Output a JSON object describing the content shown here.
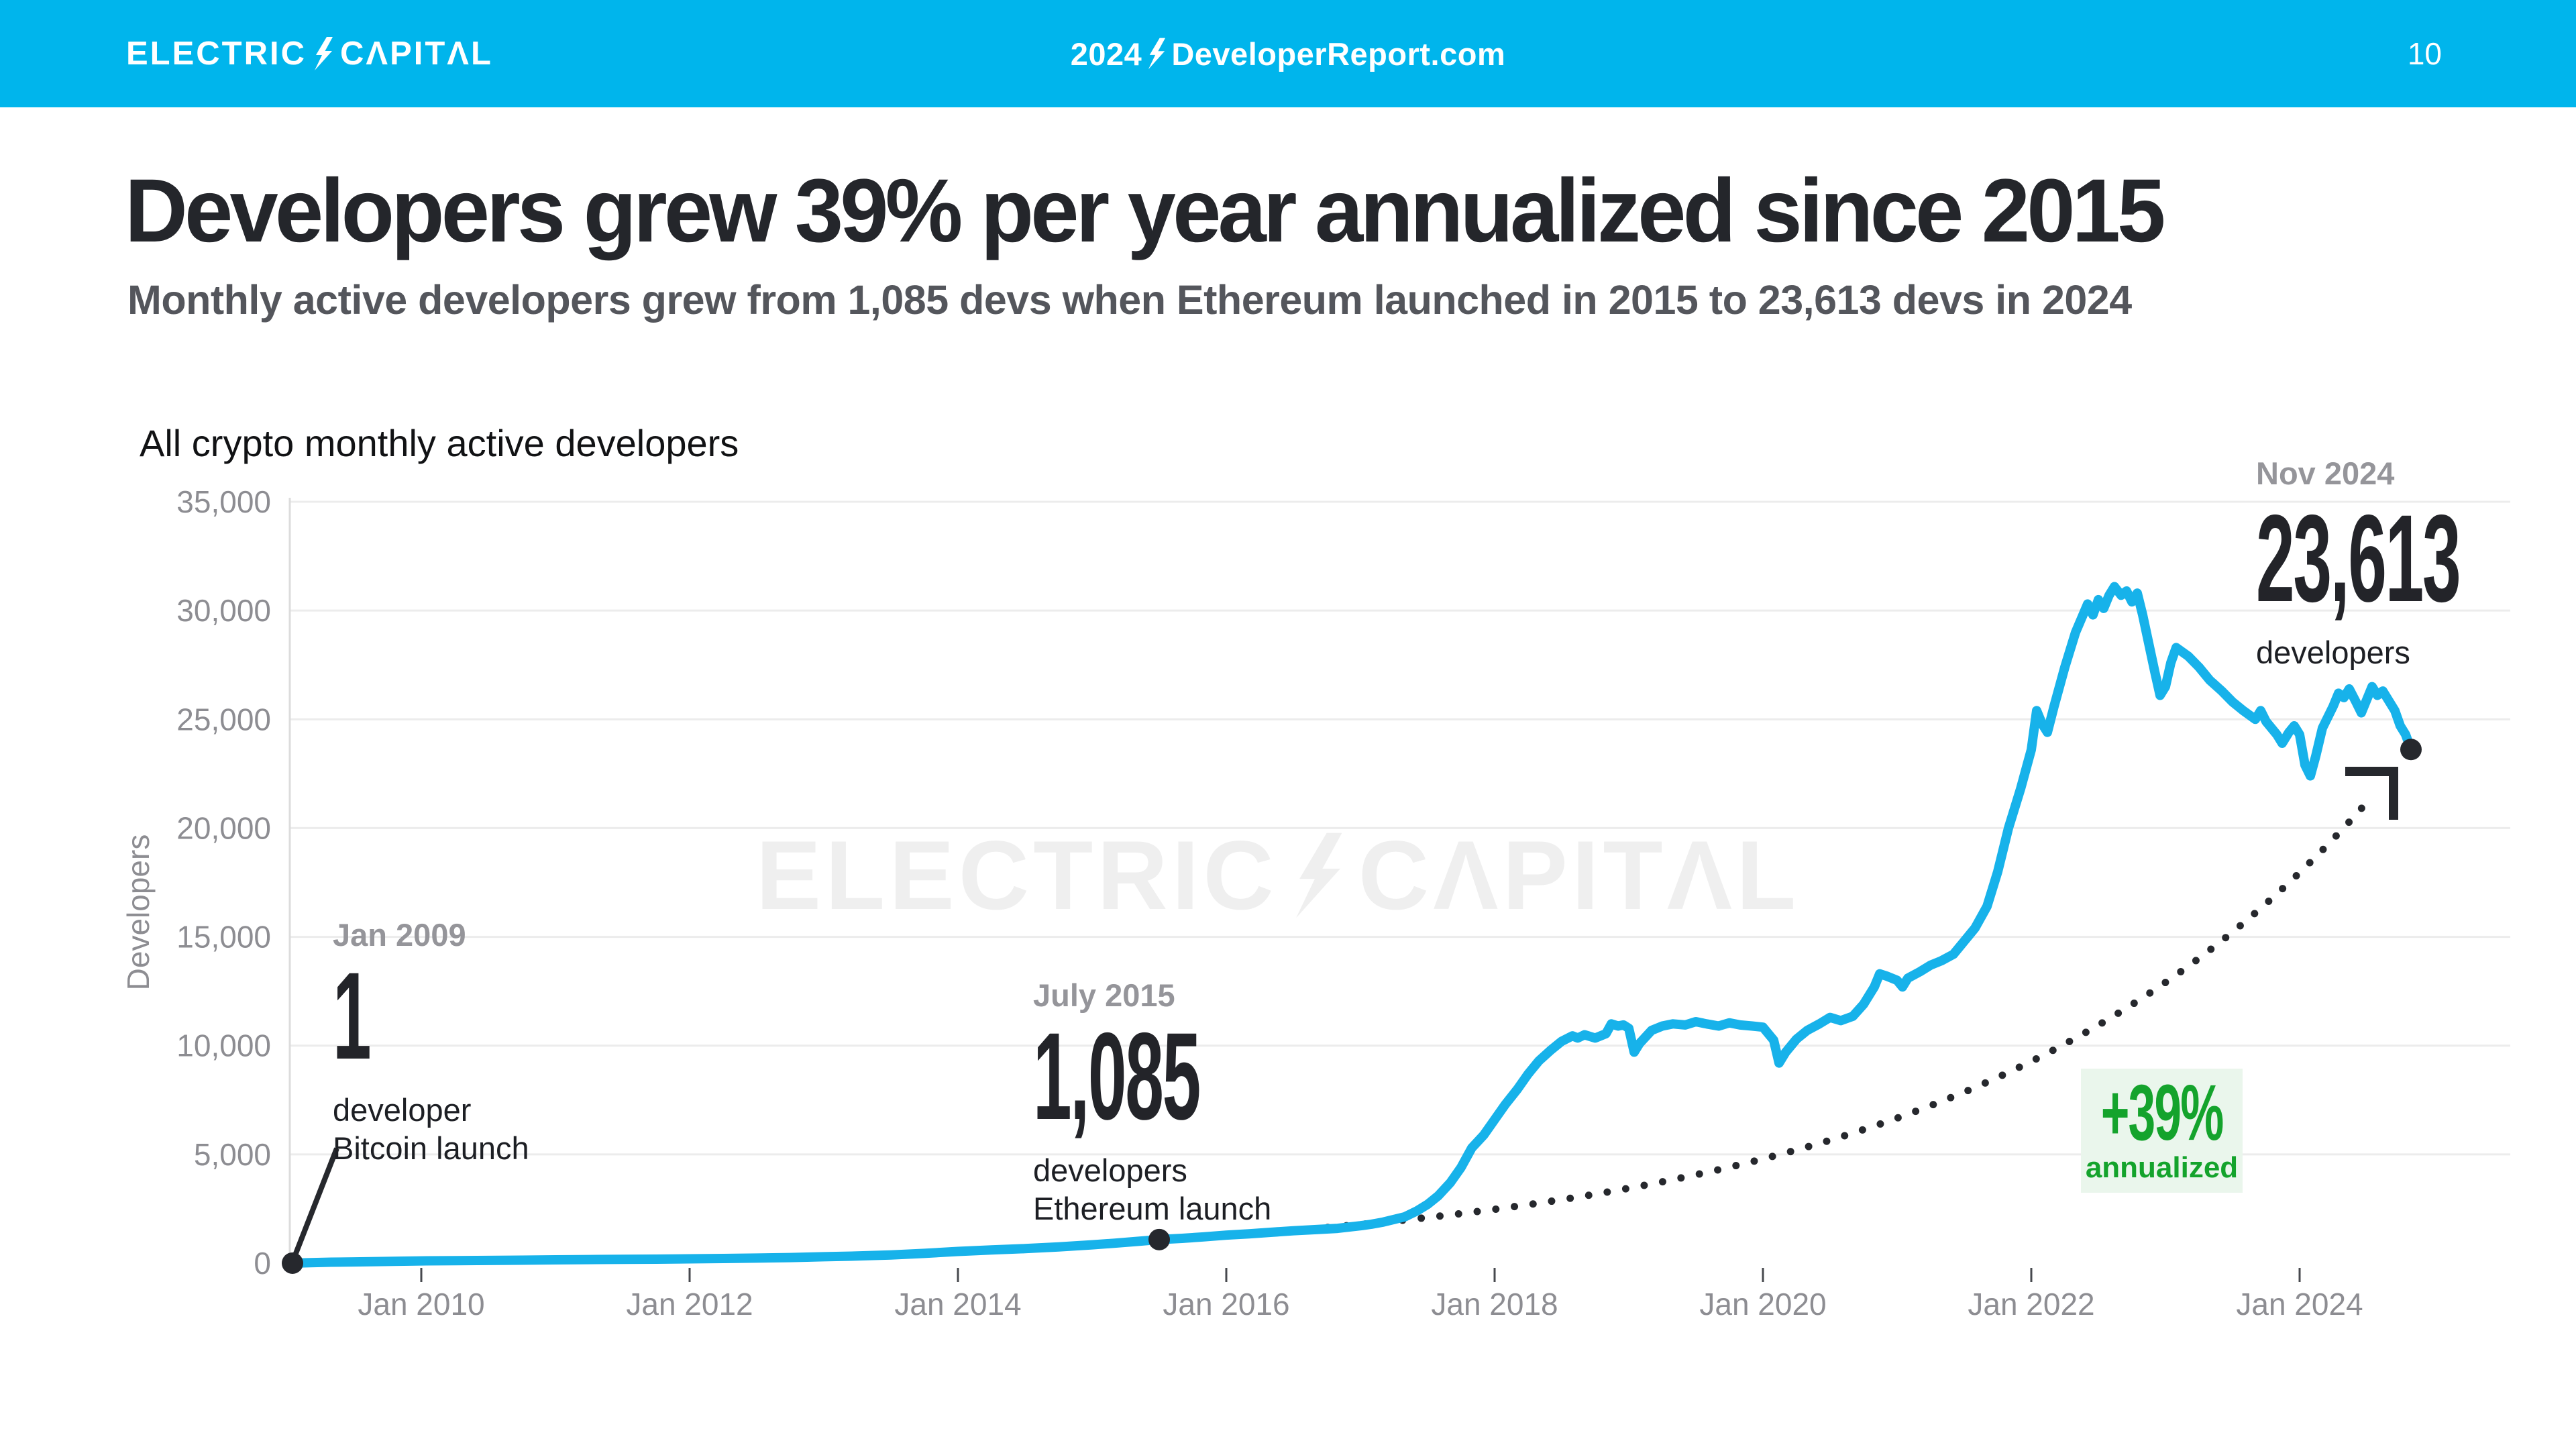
{
  "topbar": {
    "logo_electric": "ELECTRIC",
    "logo_capital": "CΛPITΛL",
    "center_year": "2024",
    "center_site": "DeveloperReport.com",
    "page_number": "10",
    "bar_color": "#00b5ec"
  },
  "header": {
    "title": "Developers grew 39% per year annualized since 2015",
    "subtitle": "Monthly active developers grew from 1,085 devs when Ethereum launched in 2015 to 23,613 devs in 2024"
  },
  "watermark": {
    "electric": "ELECTRIC",
    "capital": "CΛPITΛL"
  },
  "annotations": {
    "bitcoin": {
      "date_label": "Jan 2009",
      "value_label": "1",
      "caption_line1": "developer",
      "caption_line2": "Bitcoin launch"
    },
    "ethereum": {
      "date_label": "July 2015",
      "value_label": "1,085",
      "caption_line1": "developers",
      "caption_line2": "Ethereum launch"
    },
    "latest": {
      "date_label": "Nov 2024",
      "value_label": "23,613",
      "caption_line1": "developers"
    },
    "growth": {
      "rate_label": "+39%",
      "caption": "annualized"
    }
  },
  "colors": {
    "line_blue": "#17b2ea",
    "bar_cyan": "#00b5ec",
    "green": "#14a32c",
    "green_bg": "#eaf6ec",
    "grid": "#ececec",
    "axis": "#dcdcdc",
    "tick": "#47494e",
    "axis_text": "#8d8d92",
    "ink": "#26282d"
  },
  "chart_data": {
    "type": "line",
    "title": "All crypto monthly active developers",
    "xlabel": "",
    "ylabel": "Developers",
    "ylim": [
      0,
      35000
    ],
    "xlim": [
      2009,
      2024.95
    ],
    "grid": "horizontal",
    "y_ticks": [
      {
        "value": 0,
        "label": "0"
      },
      {
        "value": 5000,
        "label": "5,000"
      },
      {
        "value": 10000,
        "label": "10,000"
      },
      {
        "value": 15000,
        "label": "15,000"
      },
      {
        "value": 20000,
        "label": "20,000"
      },
      {
        "value": 25000,
        "label": "25,000"
      },
      {
        "value": 30000,
        "label": "30,000"
      },
      {
        "value": 35000,
        "label": "35,000"
      }
    ],
    "x_ticks": [
      {
        "year": 2010,
        "label": "Jan 2010"
      },
      {
        "year": 2012,
        "label": "Jan 2012"
      },
      {
        "year": 2014,
        "label": "Jan 2014"
      },
      {
        "year": 2016,
        "label": "Jan 2016"
      },
      {
        "year": 2018,
        "label": "Jan 2018"
      },
      {
        "year": 2020,
        "label": "Jan 2020"
      },
      {
        "year": 2022,
        "label": "Jan 2022"
      },
      {
        "year": 2024,
        "label": "Jan 2024"
      }
    ],
    "markers": [
      {
        "x": 2009.04,
        "y": 1,
        "label": "Bitcoin launch, 1 developer, Jan 2009"
      },
      {
        "x": 2015.5,
        "y": 1085,
        "label": "Ethereum launch, 1,085 developers, July 2015"
      },
      {
        "x": 2024.83,
        "y": 23613,
        "label": "Nov 2024, 23,613 developers"
      }
    ],
    "trend": {
      "label": "+39% annualized",
      "style": "dotted-exponential",
      "start": [
        2015.5,
        1085
      ],
      "end": [
        2024.83,
        23613
      ],
      "annual_growth_pct": 39
    },
    "series": [
      {
        "name": "All crypto monthly active developers",
        "color": "#17b2ea",
        "points": [
          [
            2009.04,
            1
          ],
          [
            2009.17,
            25
          ],
          [
            2009.33,
            45
          ],
          [
            2009.5,
            60
          ],
          [
            2009.67,
            75
          ],
          [
            2009.83,
            90
          ],
          [
            2010.0,
            105
          ],
          [
            2010.25,
            115
          ],
          [
            2010.5,
            125
          ],
          [
            2010.75,
            140
          ],
          [
            2011.0,
            155
          ],
          [
            2011.25,
            165
          ],
          [
            2011.5,
            175
          ],
          [
            2011.75,
            185
          ],
          [
            2012.0,
            200
          ],
          [
            2012.25,
            215
          ],
          [
            2012.5,
            235
          ],
          [
            2012.75,
            260
          ],
          [
            2013.0,
            295
          ],
          [
            2013.25,
            330
          ],
          [
            2013.5,
            380
          ],
          [
            2013.75,
            450
          ],
          [
            2014.0,
            540
          ],
          [
            2014.25,
            610
          ],
          [
            2014.5,
            670
          ],
          [
            2014.75,
            750
          ],
          [
            2015.0,
            845
          ],
          [
            2015.17,
            920
          ],
          [
            2015.33,
            1000
          ],
          [
            2015.5,
            1085
          ],
          [
            2015.67,
            1140
          ],
          [
            2015.83,
            1210
          ],
          [
            2016.0,
            1290
          ],
          [
            2016.17,
            1350
          ],
          [
            2016.33,
            1420
          ],
          [
            2016.5,
            1490
          ],
          [
            2016.67,
            1545
          ],
          [
            2016.83,
            1600
          ],
          [
            2017.0,
            1720
          ],
          [
            2017.08,
            1790
          ],
          [
            2017.17,
            1890
          ],
          [
            2017.25,
            2010
          ],
          [
            2017.33,
            2130
          ],
          [
            2017.42,
            2400
          ],
          [
            2017.5,
            2700
          ],
          [
            2017.58,
            3100
          ],
          [
            2017.67,
            3700
          ],
          [
            2017.75,
            4400
          ],
          [
            2017.83,
            5300
          ],
          [
            2017.92,
            5900
          ],
          [
            2018.0,
            6600
          ],
          [
            2018.08,
            7300
          ],
          [
            2018.17,
            8000
          ],
          [
            2018.25,
            8700
          ],
          [
            2018.33,
            9300
          ],
          [
            2018.42,
            9800
          ],
          [
            2018.5,
            10200
          ],
          [
            2018.58,
            10450
          ],
          [
            2018.62,
            10350
          ],
          [
            2018.67,
            10500
          ],
          [
            2018.75,
            10350
          ],
          [
            2018.83,
            10550
          ],
          [
            2018.87,
            11000
          ],
          [
            2018.92,
            10900
          ],
          [
            2018.96,
            10950
          ],
          [
            2019.0,
            10800
          ],
          [
            2019.04,
            9700
          ],
          [
            2019.08,
            10100
          ],
          [
            2019.17,
            10700
          ],
          [
            2019.25,
            10900
          ],
          [
            2019.33,
            11000
          ],
          [
            2019.42,
            10950
          ],
          [
            2019.5,
            11100
          ],
          [
            2019.58,
            11000
          ],
          [
            2019.67,
            10900
          ],
          [
            2019.75,
            11050
          ],
          [
            2019.83,
            10950
          ],
          [
            2019.92,
            10900
          ],
          [
            2020.0,
            10850
          ],
          [
            2020.08,
            10250
          ],
          [
            2020.12,
            9200
          ],
          [
            2020.17,
            9700
          ],
          [
            2020.25,
            10300
          ],
          [
            2020.33,
            10700
          ],
          [
            2020.42,
            11000
          ],
          [
            2020.5,
            11300
          ],
          [
            2020.58,
            11150
          ],
          [
            2020.67,
            11350
          ],
          [
            2020.75,
            11900
          ],
          [
            2020.83,
            12700
          ],
          [
            2020.87,
            13300
          ],
          [
            2020.92,
            13200
          ],
          [
            2021.0,
            13000
          ],
          [
            2021.04,
            12700
          ],
          [
            2021.08,
            13100
          ],
          [
            2021.17,
            13400
          ],
          [
            2021.25,
            13700
          ],
          [
            2021.33,
            13900
          ],
          [
            2021.42,
            14200
          ],
          [
            2021.5,
            14800
          ],
          [
            2021.58,
            15400
          ],
          [
            2021.67,
            16400
          ],
          [
            2021.75,
            18000
          ],
          [
            2021.83,
            20000
          ],
          [
            2021.92,
            21800
          ],
          [
            2022.0,
            23600
          ],
          [
            2022.04,
            25400
          ],
          [
            2022.08,
            24800
          ],
          [
            2022.12,
            24400
          ],
          [
            2022.17,
            25600
          ],
          [
            2022.25,
            27400
          ],
          [
            2022.33,
            29000
          ],
          [
            2022.42,
            30300
          ],
          [
            2022.46,
            29800
          ],
          [
            2022.5,
            30500
          ],
          [
            2022.54,
            30100
          ],
          [
            2022.58,
            30700
          ],
          [
            2022.62,
            31100
          ],
          [
            2022.67,
            30700
          ],
          [
            2022.71,
            30900
          ],
          [
            2022.75,
            30400
          ],
          [
            2022.79,
            30800
          ],
          [
            2022.83,
            29800
          ],
          [
            2022.92,
            27200
          ],
          [
            2022.96,
            26100
          ],
          [
            2023.0,
            26500
          ],
          [
            2023.04,
            27600
          ],
          [
            2023.08,
            28300
          ],
          [
            2023.17,
            27900
          ],
          [
            2023.25,
            27400
          ],
          [
            2023.33,
            26800
          ],
          [
            2023.42,
            26300
          ],
          [
            2023.5,
            25800
          ],
          [
            2023.58,
            25400
          ],
          [
            2023.67,
            25000
          ],
          [
            2023.71,
            25400
          ],
          [
            2023.75,
            24900
          ],
          [
            2023.83,
            24300
          ],
          [
            2023.87,
            23900
          ],
          [
            2023.92,
            24400
          ],
          [
            2023.96,
            24700
          ],
          [
            2024.0,
            24300
          ],
          [
            2024.04,
            22900
          ],
          [
            2024.08,
            22400
          ],
          [
            2024.12,
            23300
          ],
          [
            2024.17,
            24600
          ],
          [
            2024.25,
            25600
          ],
          [
            2024.29,
            26200
          ],
          [
            2024.33,
            26000
          ],
          [
            2024.37,
            26400
          ],
          [
            2024.42,
            25800
          ],
          [
            2024.46,
            25300
          ],
          [
            2024.5,
            25900
          ],
          [
            2024.54,
            26500
          ],
          [
            2024.58,
            26100
          ],
          [
            2024.62,
            26300
          ],
          [
            2024.67,
            25800
          ],
          [
            2024.71,
            25400
          ],
          [
            2024.75,
            24700
          ],
          [
            2024.79,
            24300
          ],
          [
            2024.83,
            23613
          ]
        ]
      }
    ]
  }
}
